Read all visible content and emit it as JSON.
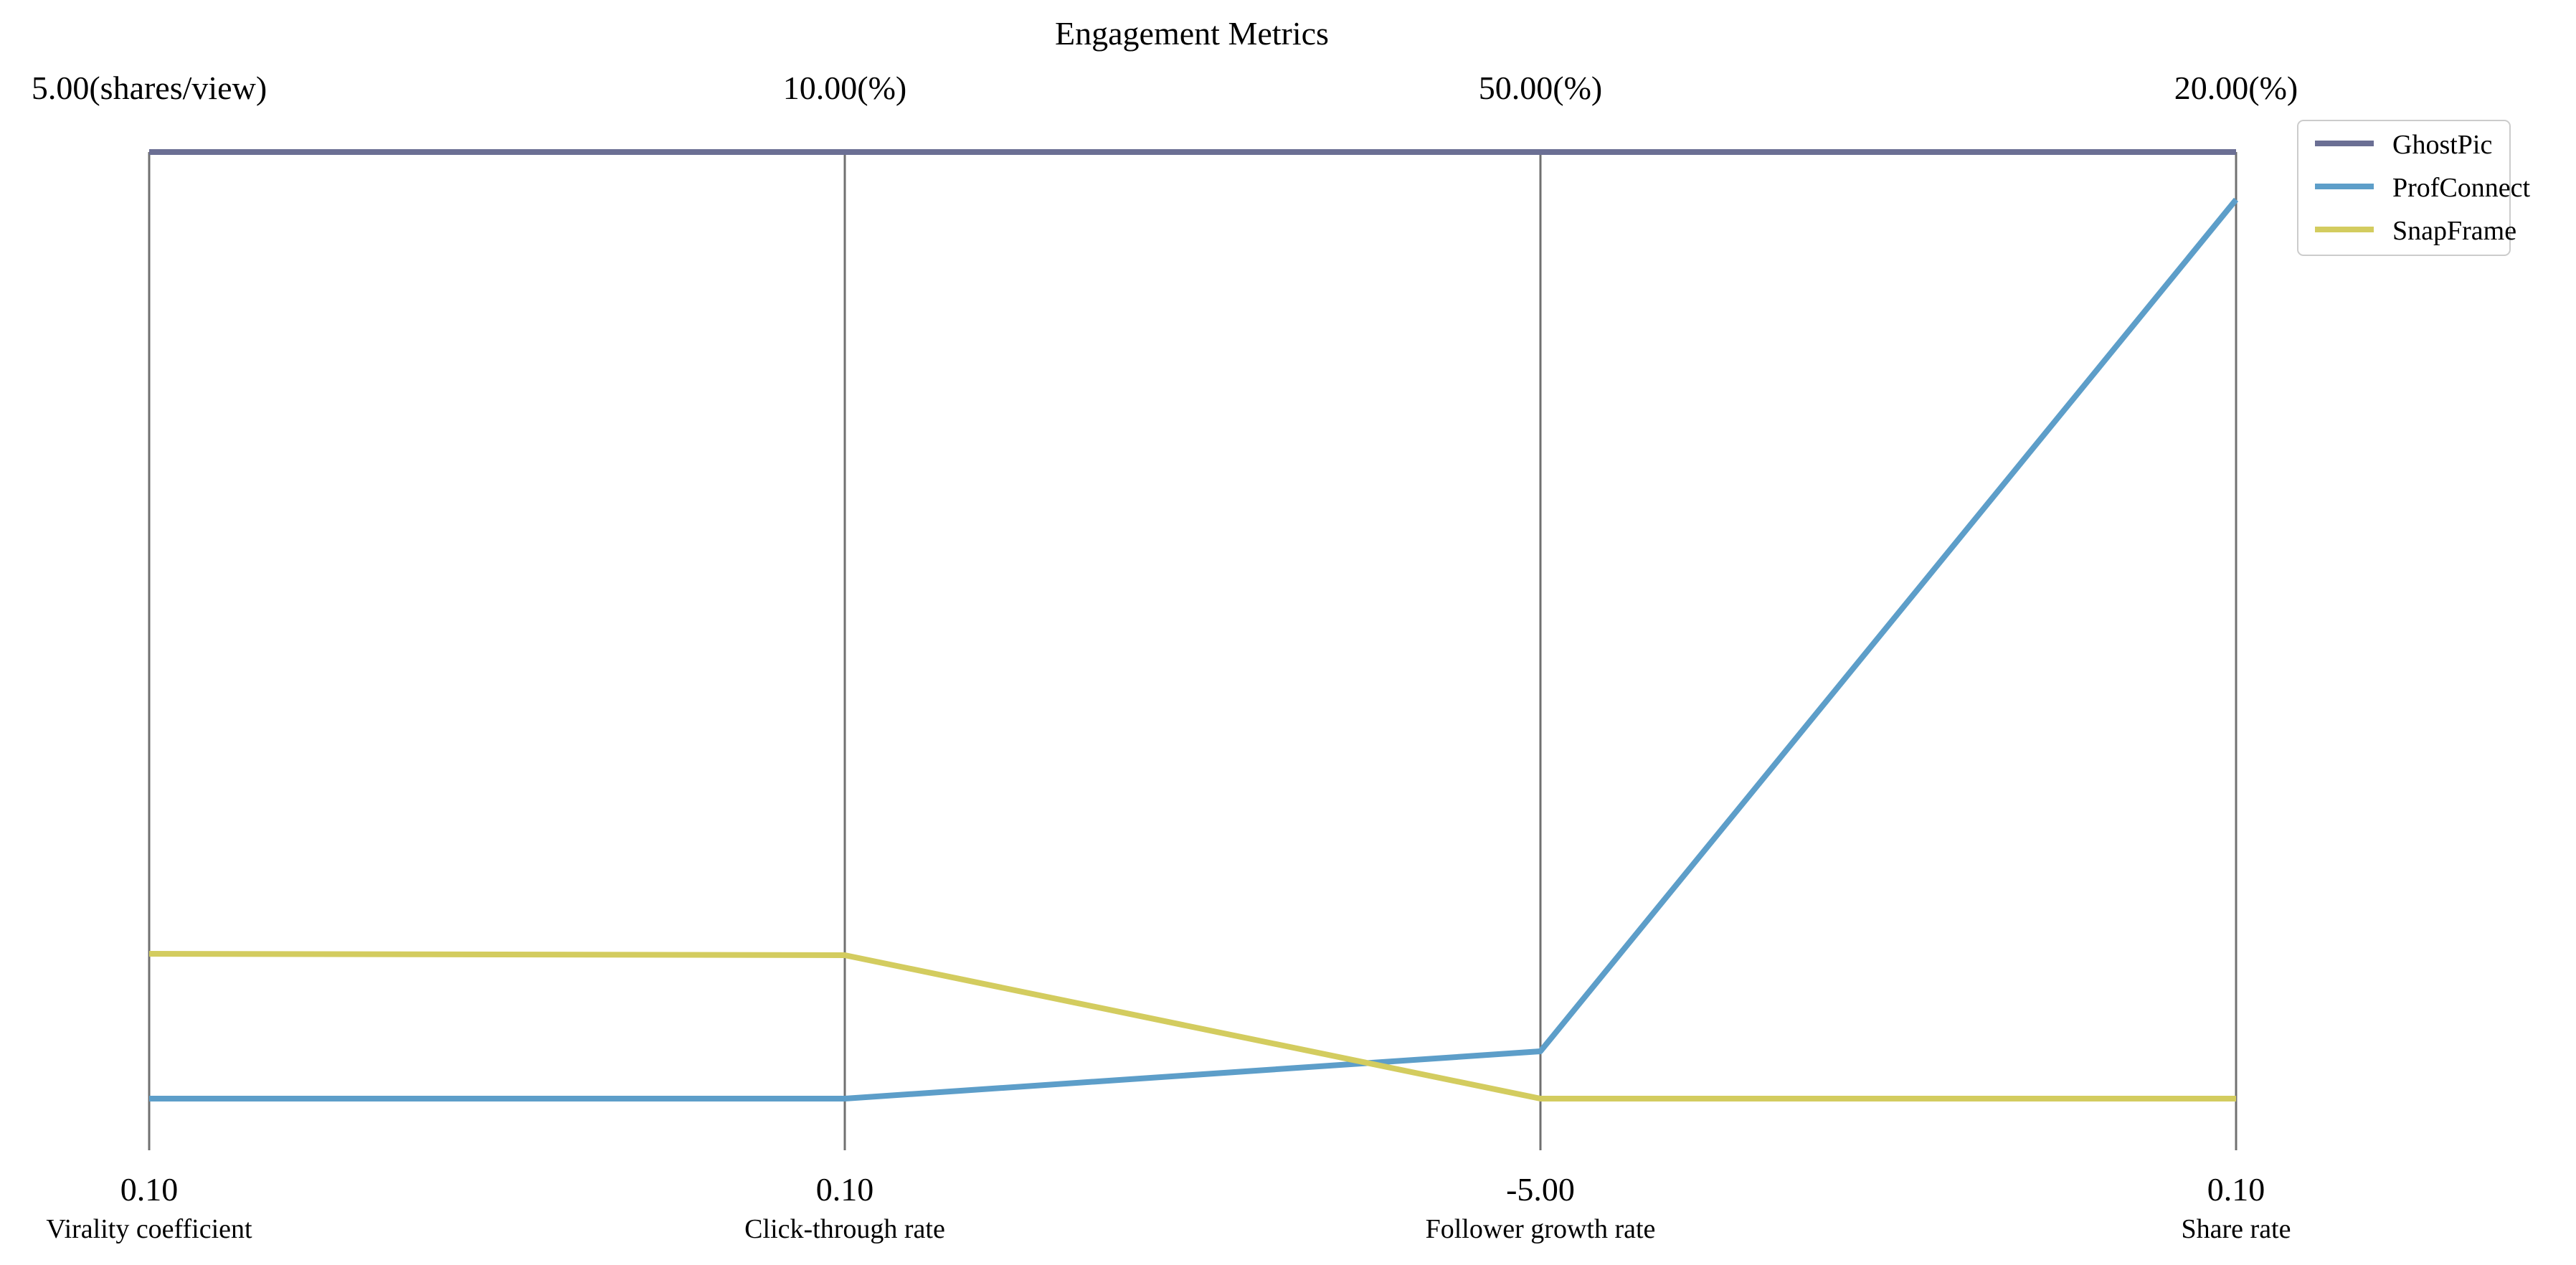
{
  "chart_data": {
    "type": "parallel-coordinates",
    "title": "Engagement Metrics",
    "axes": [
      {
        "name": "Virality coefficient",
        "min": 0.1,
        "max": 5.0,
        "min_label": "0.10",
        "max_label": "5.00(shares/view)"
      },
      {
        "name": "Click-through rate",
        "min": 0.1,
        "max": 10.0,
        "min_label": "0.10",
        "max_label": "10.00(%)"
      },
      {
        "name": "Follower growth rate",
        "min": -5.0,
        "max": 50.0,
        "min_label": "-5.00",
        "max_label": "50.00(%)"
      },
      {
        "name": "Share rate",
        "min": 0.1,
        "max": 20.0,
        "min_label": "0.10",
        "max_label": "20.00(%)"
      }
    ],
    "series": [
      {
        "name": "GhostPic",
        "color": "#6b6f94",
        "values": [
          5.0,
          10.0,
          50.0,
          20.0
        ]
      },
      {
        "name": "ProfConnect",
        "color": "#5d9ec9",
        "values": [
          0.1,
          0.1,
          -2.25,
          19.0
        ]
      },
      {
        "name": "SnapFrame",
        "color": "#d3cc5f",
        "values": [
          0.85,
          1.6,
          -5.0,
          0.1
        ]
      }
    ],
    "legend": "top-right",
    "grid": false
  }
}
